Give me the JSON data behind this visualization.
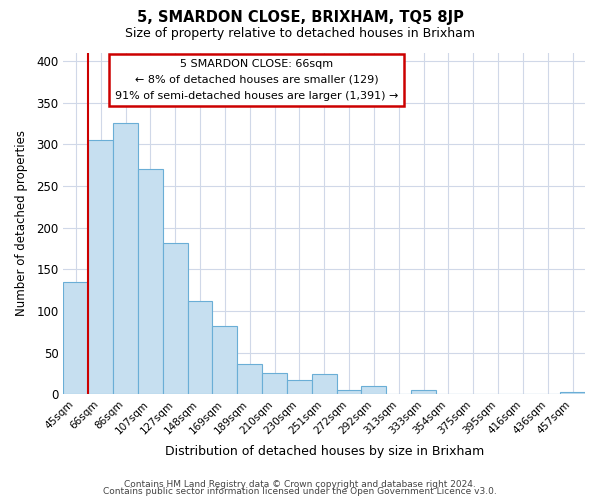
{
  "title": "5, SMARDON CLOSE, BRIXHAM, TQ5 8JP",
  "subtitle": "Size of property relative to detached houses in Brixham",
  "xlabel": "Distribution of detached houses by size in Brixham",
  "ylabel": "Number of detached properties",
  "footer_line1": "Contains HM Land Registry data © Crown copyright and database right 2024.",
  "footer_line2": "Contains public sector information licensed under the Open Government Licence v3.0.",
  "bar_labels": [
    "45sqm",
    "66sqm",
    "86sqm",
    "107sqm",
    "127sqm",
    "148sqm",
    "169sqm",
    "189sqm",
    "210sqm",
    "230sqm",
    "251sqm",
    "272sqm",
    "292sqm",
    "313sqm",
    "333sqm",
    "354sqm",
    "375sqm",
    "395sqm",
    "416sqm",
    "436sqm",
    "457sqm"
  ],
  "bar_values": [
    135,
    305,
    325,
    270,
    182,
    112,
    82,
    37,
    26,
    17,
    25,
    5,
    10,
    1,
    5,
    1,
    1,
    0,
    1,
    0,
    3
  ],
  "bar_color": "#c6dff0",
  "bar_edge_color": "#6aaed6",
  "highlight_line_color": "#cc0000",
  "annotation_title": "5 SMARDON CLOSE: 66sqm",
  "annotation_line1": "← 8% of detached houses are smaller (129)",
  "annotation_line2": "91% of semi-detached houses are larger (1,391) →",
  "annotation_box_color": "#ffffff",
  "annotation_box_edge_color": "#cc0000",
  "ylim": [
    0,
    410
  ],
  "yticks": [
    0,
    50,
    100,
    150,
    200,
    250,
    300,
    350,
    400
  ],
  "background_color": "#ffffff",
  "grid_color": "#d0d8e8"
}
